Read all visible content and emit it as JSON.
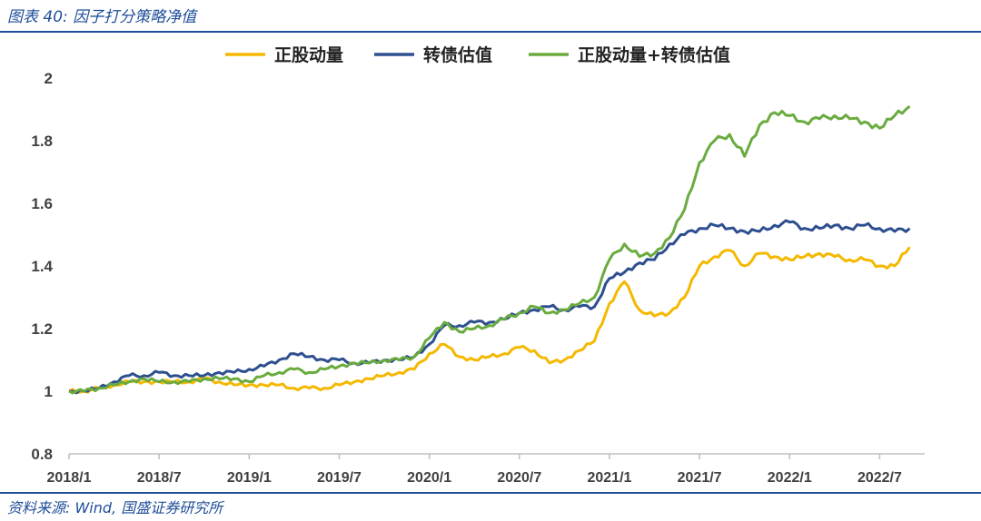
{
  "header": {
    "title": "图表 40:  因子打分策略净值"
  },
  "footer": {
    "source": "资料来源:  Wind, 国盛证券研究所"
  },
  "colors": {
    "accent": "#1f4e9a",
    "series_1": "#f5b800",
    "series_2": "#2e4f8f",
    "series_3": "#6aab3f",
    "axis": "#bfbfbf"
  },
  "chart_data": {
    "type": "line",
    "title": "",
    "xlabel": "",
    "ylabel": "",
    "xlim": [
      "2018/1",
      "2022/10"
    ],
    "ylim": [
      0.8,
      2.0
    ],
    "yticks": [
      "0.8",
      "1",
      "1.2",
      "1.4",
      "1.6",
      "1.8",
      "2"
    ],
    "xticks": [
      "2018/1",
      "2018/7",
      "2019/1",
      "2019/7",
      "2020/1",
      "2020/7",
      "2021/1",
      "2021/7",
      "2022/1",
      "2022/7"
    ],
    "grid": false,
    "legend": "top-center",
    "x": [
      "2018/1",
      "2018/2",
      "2018/3",
      "2018/4",
      "2018/5",
      "2018/6",
      "2018/7",
      "2018/8",
      "2018/9",
      "2018/10",
      "2018/11",
      "2018/12",
      "2019/1",
      "2019/2",
      "2019/3",
      "2019/4",
      "2019/5",
      "2019/6",
      "2019/7",
      "2019/8",
      "2019/9",
      "2019/10",
      "2019/11",
      "2019/12",
      "2020/1",
      "2020/2",
      "2020/3",
      "2020/4",
      "2020/5",
      "2020/6",
      "2020/7",
      "2020/8",
      "2020/9",
      "2020/10",
      "2020/11",
      "2020/12",
      "2021/1",
      "2021/2",
      "2021/3",
      "2021/4",
      "2021/5",
      "2021/6",
      "2021/7",
      "2021/8",
      "2021/9",
      "2021/10",
      "2021/11",
      "2021/12",
      "2022/1",
      "2022/2",
      "2022/3",
      "2022/4",
      "2022/5",
      "2022/6",
      "2022/7",
      "2022/8",
      "2022/9"
    ],
    "series": [
      {
        "name": "正股动量",
        "values": [
          1.0,
          1.0,
          1.01,
          1.02,
          1.03,
          1.03,
          1.03,
          1.03,
          1.03,
          1.04,
          1.03,
          1.02,
          1.02,
          1.02,
          1.02,
          1.01,
          1.01,
          1.01,
          1.02,
          1.03,
          1.04,
          1.05,
          1.06,
          1.07,
          1.12,
          1.15,
          1.11,
          1.1,
          1.11,
          1.12,
          1.14,
          1.13,
          1.09,
          1.1,
          1.13,
          1.16,
          1.28,
          1.35,
          1.26,
          1.24,
          1.25,
          1.3,
          1.4,
          1.43,
          1.45,
          1.4,
          1.44,
          1.43,
          1.42,
          1.43,
          1.44,
          1.43,
          1.42,
          1.42,
          1.4,
          1.4,
          1.46
        ]
      },
      {
        "name": "转债估值",
        "values": [
          1.0,
          1.0,
          1.01,
          1.03,
          1.05,
          1.05,
          1.06,
          1.05,
          1.05,
          1.05,
          1.06,
          1.06,
          1.07,
          1.08,
          1.1,
          1.12,
          1.11,
          1.1,
          1.1,
          1.09,
          1.09,
          1.1,
          1.1,
          1.11,
          1.15,
          1.21,
          1.21,
          1.22,
          1.22,
          1.23,
          1.25,
          1.26,
          1.27,
          1.26,
          1.27,
          1.27,
          1.36,
          1.38,
          1.41,
          1.42,
          1.47,
          1.5,
          1.52,
          1.53,
          1.52,
          1.51,
          1.51,
          1.53,
          1.54,
          1.52,
          1.52,
          1.53,
          1.52,
          1.53,
          1.52,
          1.51,
          1.52
        ]
      },
      {
        "name": "正股动量+转债估值",
        "values": [
          1.0,
          1.0,
          1.01,
          1.02,
          1.03,
          1.04,
          1.03,
          1.03,
          1.03,
          1.04,
          1.04,
          1.04,
          1.03,
          1.05,
          1.06,
          1.07,
          1.06,
          1.07,
          1.08,
          1.09,
          1.09,
          1.1,
          1.1,
          1.11,
          1.17,
          1.22,
          1.19,
          1.2,
          1.21,
          1.23,
          1.25,
          1.27,
          1.25,
          1.26,
          1.28,
          1.3,
          1.42,
          1.47,
          1.43,
          1.44,
          1.49,
          1.58,
          1.73,
          1.8,
          1.82,
          1.75,
          1.85,
          1.89,
          1.88,
          1.86,
          1.87,
          1.88,
          1.87,
          1.86,
          1.84,
          1.88,
          1.91
        ]
      }
    ]
  }
}
